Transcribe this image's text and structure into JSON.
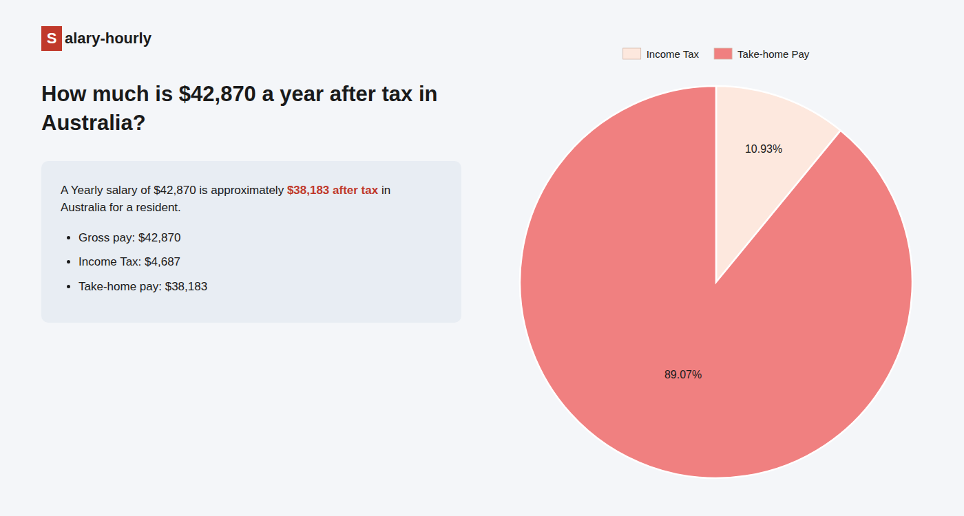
{
  "chart_data": {
    "type": "pie",
    "title": [
      "How much is $42,870 a year after tax in",
      "Australia?"
    ],
    "categories": [
      "Income Tax",
      "Take-home Pay"
    ],
    "values": [
      10.93,
      89.07
    ],
    "value_labels": [
      "10.93%",
      "89.07%"
    ],
    "colors": [
      "#fde8de",
      "#f08080"
    ],
    "data_labels": true,
    "legend": "top",
    "annotations": [
      {
        "text": "S",
        "color": "#c0392b"
      },
      {
        "text": "alary-hourly"
      },
      {
        "text": "A Yearly salary of $42,870 is approximately "
      },
      {
        "text": "$38,183 after tax",
        "color": "#c0392b"
      },
      {
        "text": " in"
      },
      {
        "text": "Australia for a resident."
      },
      {
        "text": "Gross pay: $42,870"
      },
      {
        "text": "Income Tax: $4,687"
      },
      {
        "text": "Take-home pay: $38,183"
      }
    ]
  }
}
